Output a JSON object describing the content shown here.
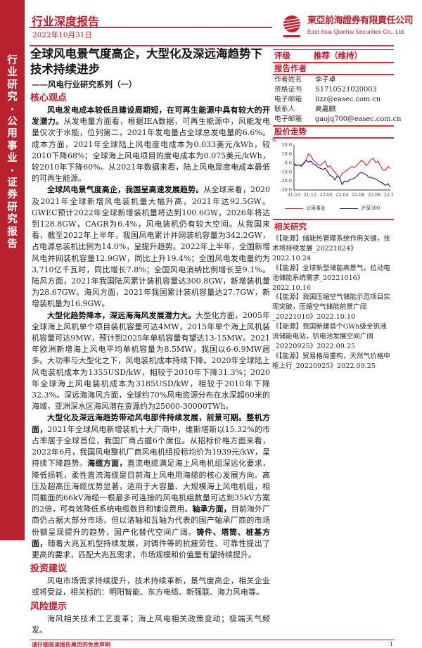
{
  "sidebar": {
    "text": "行业研究·公用事业·证券研究报告"
  },
  "header": {
    "report_type": "行业深度报告",
    "date": "2022年10月31日",
    "company_cn": "東亞前海證券有限責任公司",
    "company_en": "East Asia Qianhai Securities Co., Ltd.",
    "accent_color": "#c0182b"
  },
  "title": {
    "main": "全球风电景气度高企，大型化及深远海趋势下技术持续进步",
    "subtitle": "——风电行业研究系列（一）"
  },
  "core": {
    "heading": "核心观点",
    "paragraphs": [
      {
        "bold": "风电发电成本较低且建设周期短，在可再生能源中具有较大的开发潜力。",
        "text": "从发电量方面看，根据IEA数据，可再生能源中，风能发电量仅次于水能，位列第二，2021年发电量占全球总发电量的6.6%。成本方面，2021年全球陆上风电度电成本为0.033美元/kWh，较2010下降68%；全球海上风电项目的度电成本为0.075美元/kWh，较2010年下降60%。从2021年数据来看，陆上风电是度电成本最低的可再生能源。"
      },
      {
        "bold": "全球风电景气度高企，我国呈高速发展趋势。",
        "text": "从全球来看，2020及2021年全球新增风电装机量大幅升高，2021年达92.5GW。GWEC预计2022年全球新增装机量将达到100.6GW，2026年将达到128.8GW，CAGR为6.4%，风电装机仍有较大空间。从我国来看，截至2022年上半年，我国风电累计并网装机容量为342.2GW，占电源总装机比例为14.0%，呈提升趋势。2022年上半年，全国新增风电并网装机容量12.9GW，同比上升19.4%；全国风电发电量约为3,710亿千瓦时，同比增长7.8%；全国风电消纳比例增长至9.1%。陆风方面，2021年我国陆风累计装机容量达300.8GW，新增装机量为28.67GW。海风方面，2021年我国累计装机容量达27.7GW，新增装机量为16.9GW。"
      },
      {
        "bold": "大型化趋势降本，深远海海风发展潜力大。",
        "text": "大型化方面，2005年全球海上风机单个项目装机容量可达4MW，2015年单个海上风机装机容量可达9MW，预计到2025年单机容量有望达13-15MW。2021年欧洲新增海上风电平均单机容量为8.5MW，我国以6-6.9MW居多。大功率与大型化之下，风电装机成本持续下降。2020年全球陆上风电装机成本为1355USD/kW，相较于2010年下降31.3%；2020年全球海上风电装机成本为3185USD/kW，相较于2010年下降32.3%。深远海海风方面，全球约70%风电资源分布在水深超60米的海域，亚洲深水区海风潜在资源约为25000-30000TWh。"
      },
      {
        "bold": "大型化及深远海趋势带动风电部件持续发展，前景可期。整机方面，",
        "text": "2021年全球风电新增装机十大厂商中，维斯塔斯以15.32%的市占率居于全球首位，我国厂商占据6个席位。从招标价格方面来看，2022年6月，我国风电整机厂商风电机组投标均价为1939元/kW，呈持续下降趋势。",
        "bold2": "海缆方面，",
        "text2": "直流电缆满足海上风电机组深远化要求，降低损耗，柔性直流海缆是目前海上风电用海缆的核心发展方向。高压及超高压海缆优势显著，适用于大容量、大规模海上风电机组，相同截面的66kV海缆一根最多可连接的风电机组数量可达到35kV方案的2倍，可有效降低系统电缆数目和铺设费用。",
        "bold3": "轴承方面，",
        "text3": "目前海外厂商仍占据大部分市场，但以洛轴和瓦轴为代表的国产轴承厂商的市场份额呈现提升的趋势，国产化替代空间广阔。",
        "bold4": "铸件、塔筒、桩基方面，",
        "text4": "随着大兆瓦机型持续发展，对铸件等的抗疲劳性、可靠性提出了更高的要求，匹配大兆瓦需求，市场规模和价值量有望持续提升。"
      }
    ]
  },
  "investment": {
    "heading": "投资建议",
    "text": "风电市场需求持续提升，技术持续革新，景气度高企，相关企业或将受益，相关标的：明阳智能、东方电缆、新强联、海力风电等。"
  },
  "risk": {
    "heading": "风险提示",
    "text": "海风相关技术工艺变革；海上风电相关政策变动；极端天气频发。"
  },
  "rating": {
    "label": "评级",
    "value": "推荐（维持）"
  },
  "authors": {
    "heading": "报告作者",
    "rows": [
      {
        "k": "作者姓名",
        "v": "李子卓"
      },
      {
        "k": "资格证书",
        "v": "S1710521020003"
      },
      {
        "k": "电子邮箱",
        "v": "lizz@easec.com.cn"
      },
      {
        "k": "联系人",
        "v": "高嘉麒"
      },
      {
        "k": "电子邮箱",
        "v": "gaojq700@easec.com.cn"
      }
    ]
  },
  "stock": {
    "heading": "股价走势"
  },
  "chart_data": {
    "type": "line",
    "ylabel": "%",
    "ylim": [
      -30,
      20
    ],
    "yticks": [
      "20.0",
      "10.0",
      "0.0",
      "-10.0",
      "-20.0",
      "-30.0"
    ],
    "xticks": [
      "21-10",
      "21-12",
      "22-02",
      "22-04",
      "22-06",
      "22-08",
      "22-10"
    ],
    "grid": false,
    "legend": "bottom",
    "series": [
      {
        "name": "公用事业",
        "color": "#e0202a",
        "values": [
          0,
          -3,
          -2,
          -4,
          0,
          3,
          10,
          8,
          3,
          1,
          -2,
          -3,
          0,
          2,
          -5,
          -3,
          -7,
          -10,
          -14,
          -17,
          -12,
          -10,
          -8,
          -6,
          -4,
          -5,
          -3,
          0,
          3,
          1,
          -3,
          0,
          4,
          5,
          0,
          2,
          -4,
          -8,
          -8,
          -4,
          -6
        ]
      },
      {
        "name": "沪深300",
        "color": "#1a1a7a",
        "values": [
          -2,
          -3,
          -2,
          -3,
          -1,
          3,
          1,
          2,
          -1,
          -2,
          -5,
          -6,
          -7,
          -6,
          -10,
          -14,
          -15,
          -19,
          -14,
          -17,
          -24,
          -20,
          -21,
          -19,
          -18,
          -17,
          -15,
          -12,
          -10,
          -12,
          -13,
          -16,
          -16,
          -17,
          -18,
          -20,
          -21,
          -23,
          -25,
          -23,
          -27
        ]
      }
    ]
  },
  "related": {
    "heading": "相关研究",
    "items": [
      "《【能源】储能热管理系统作用关键，技术将持续发展_20221024》2022.10.24",
      "《【能源】全球新型储能高景气，拉动电池储能系统需求_20221016》2022.10.16",
      "《【能源】我国压缩空气储能示范项目实现突破，压缩空气储能前景广阔_20221010》2022.10.10",
      "《【能源】我国新建首个GWh级全钒液流储能电站，钒电池发展空间广阔_20220925》2022.09.25",
      "《【能源】贸易格局重构，天然气价格中枢上行_20220925》2022.09.25"
    ]
  },
  "footer": {
    "disclaimer": "请仔细阅读报告尾页的免责声明",
    "page": "1"
  }
}
